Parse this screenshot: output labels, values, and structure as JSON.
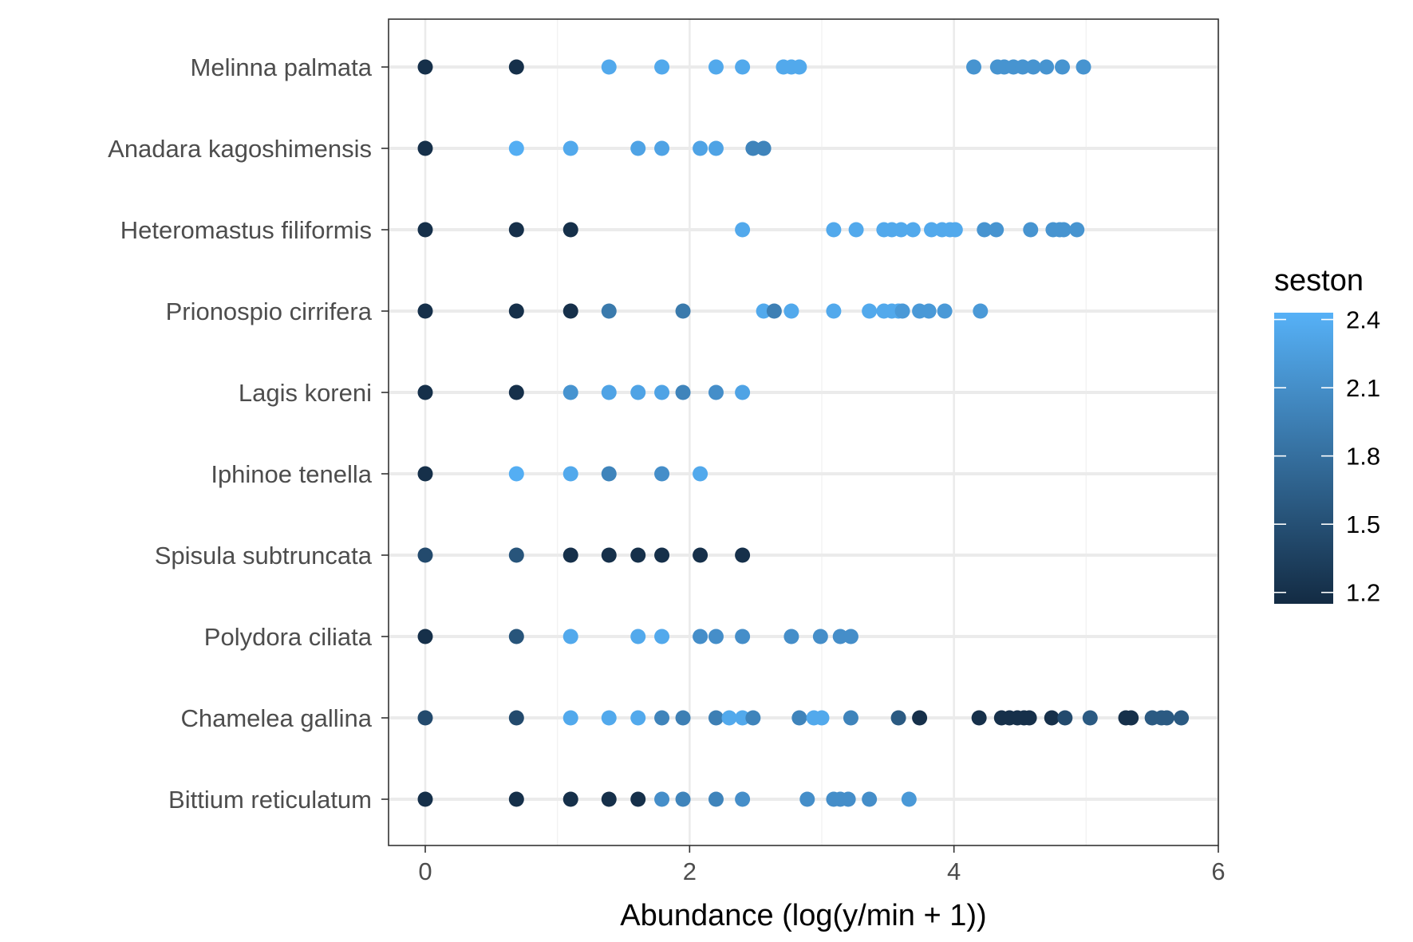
{
  "chart_data": {
    "type": "scatter",
    "title": "",
    "xlabel": "Abundance (log(y/min + 1))",
    "ylabel": "",
    "xlim": [
      -0.28,
      6.0
    ],
    "x_ticks": [
      0,
      2,
      4,
      6
    ],
    "x_tick_labels": [
      "0",
      "2",
      "4",
      "6"
    ],
    "grid": true,
    "theme": "bw",
    "color_legend": {
      "title": "seston",
      "position": "right",
      "min": 1.15,
      "max": 2.43,
      "ticks": [
        1.2,
        1.5,
        1.8,
        2.1,
        2.4
      ],
      "tick_labels": [
        "1.2",
        "1.5",
        "1.8",
        "2.1",
        "2.4"
      ],
      "low_color": "#132B43",
      "high_color": "#56B1F7"
    },
    "categories": [
      "Melinna palmata",
      "Anadara kagoshimensis",
      "Heteromastus filiformis",
      "Prionospio cirrifera",
      "Lagis koreni",
      "Iphinoe tenella",
      "Spisula subtruncata",
      "Polydora ciliata",
      "Chamelea gallina",
      "Bittium reticulatum"
    ],
    "series": [
      {
        "category": "Melinna palmata",
        "points": [
          [
            0,
            1.2
          ],
          [
            0.69,
            1.2
          ],
          [
            1.39,
            2.35
          ],
          [
            1.79,
            2.35
          ],
          [
            2.2,
            2.35
          ],
          [
            2.4,
            2.35
          ],
          [
            2.71,
            2.35
          ],
          [
            2.77,
            2.35
          ],
          [
            2.83,
            2.35
          ],
          [
            4.15,
            2.15
          ],
          [
            4.33,
            2.15
          ],
          [
            4.38,
            2.15
          ],
          [
            4.45,
            2.15
          ],
          [
            4.52,
            2.15
          ],
          [
            4.6,
            2.15
          ],
          [
            4.7,
            2.15
          ],
          [
            4.82,
            2.15
          ],
          [
            4.98,
            2.15
          ]
        ]
      },
      {
        "category": "Anadara kagoshimensis",
        "points": [
          [
            0,
            1.2
          ],
          [
            0.69,
            2.4
          ],
          [
            1.1,
            2.35
          ],
          [
            1.61,
            2.3
          ],
          [
            1.79,
            2.3
          ],
          [
            2.08,
            2.3
          ],
          [
            2.2,
            2.3
          ],
          [
            2.48,
            2.0
          ],
          [
            2.56,
            2.0
          ]
        ]
      },
      {
        "category": "Heteromastus filiformis",
        "points": [
          [
            0,
            1.2
          ],
          [
            0.69,
            1.2
          ],
          [
            1.1,
            1.2
          ],
          [
            2.4,
            2.35
          ],
          [
            3.09,
            2.35
          ],
          [
            3.26,
            2.35
          ],
          [
            3.47,
            2.35
          ],
          [
            3.53,
            2.35
          ],
          [
            3.6,
            2.35
          ],
          [
            3.69,
            2.35
          ],
          [
            3.83,
            2.35
          ],
          [
            3.91,
            2.35
          ],
          [
            3.97,
            2.35
          ],
          [
            4.01,
            2.35
          ],
          [
            4.23,
            2.15
          ],
          [
            4.32,
            2.15
          ],
          [
            4.58,
            2.15
          ],
          [
            4.75,
            2.15
          ],
          [
            4.8,
            2.15
          ],
          [
            4.83,
            2.15
          ],
          [
            4.93,
            2.15
          ]
        ]
      },
      {
        "category": "Prionospio cirrifera",
        "points": [
          [
            0,
            1.2
          ],
          [
            0.69,
            1.2
          ],
          [
            1.1,
            1.2
          ],
          [
            1.39,
            1.9
          ],
          [
            1.95,
            1.9
          ],
          [
            2.56,
            2.35
          ],
          [
            2.64,
            1.95
          ],
          [
            2.77,
            2.35
          ],
          [
            3.09,
            2.35
          ],
          [
            3.36,
            2.35
          ],
          [
            3.47,
            2.35
          ],
          [
            3.53,
            2.35
          ],
          [
            3.58,
            2.35
          ],
          [
            3.61,
            2.2
          ],
          [
            3.74,
            2.2
          ],
          [
            3.81,
            2.2
          ],
          [
            3.93,
            2.2
          ],
          [
            4.2,
            2.2
          ]
        ]
      },
      {
        "category": "Lagis koreni",
        "points": [
          [
            0,
            1.2
          ],
          [
            0.69,
            1.2
          ],
          [
            1.1,
            2.15
          ],
          [
            1.39,
            2.3
          ],
          [
            1.61,
            2.3
          ],
          [
            1.79,
            2.3
          ],
          [
            1.95,
            2.0
          ],
          [
            2.2,
            2.1
          ],
          [
            2.4,
            2.3
          ]
        ]
      },
      {
        "category": "Iphinoe tenella",
        "points": [
          [
            0,
            1.2
          ],
          [
            0.69,
            2.4
          ],
          [
            1.1,
            2.35
          ],
          [
            1.39,
            2.0
          ],
          [
            1.79,
            2.1
          ],
          [
            2.08,
            2.35
          ]
        ]
      },
      {
        "category": "Spisula subtruncata",
        "points": [
          [
            0,
            1.45
          ],
          [
            0.69,
            1.55
          ],
          [
            1.1,
            1.2
          ],
          [
            1.39,
            1.2
          ],
          [
            1.61,
            1.2
          ],
          [
            1.79,
            1.2
          ],
          [
            2.08,
            1.2
          ],
          [
            2.4,
            1.2
          ]
        ]
      },
      {
        "category": "Polydora ciliata",
        "points": [
          [
            0,
            1.2
          ],
          [
            0.69,
            1.55
          ],
          [
            1.1,
            2.35
          ],
          [
            1.61,
            2.35
          ],
          [
            1.79,
            2.35
          ],
          [
            2.08,
            2.1
          ],
          [
            2.2,
            2.1
          ],
          [
            2.4,
            2.1
          ],
          [
            2.77,
            2.1
          ],
          [
            2.99,
            2.1
          ],
          [
            3.14,
            2.1
          ],
          [
            3.22,
            2.1
          ]
        ]
      },
      {
        "category": "Chamelea gallina",
        "points": [
          [
            0,
            1.45
          ],
          [
            0.69,
            1.45
          ],
          [
            1.1,
            2.35
          ],
          [
            1.39,
            2.35
          ],
          [
            1.61,
            2.35
          ],
          [
            1.79,
            2.0
          ],
          [
            1.95,
            1.95
          ],
          [
            2.2,
            1.95
          ],
          [
            2.3,
            2.35
          ],
          [
            2.4,
            2.35
          ],
          [
            2.48,
            2.0
          ],
          [
            2.83,
            2.0
          ],
          [
            2.94,
            2.35
          ],
          [
            3.0,
            2.35
          ],
          [
            3.22,
            2.0
          ],
          [
            3.58,
            1.6
          ],
          [
            3.74,
            1.2
          ],
          [
            4.19,
            1.2
          ],
          [
            4.36,
            1.2
          ],
          [
            4.42,
            1.2
          ],
          [
            4.48,
            1.2
          ],
          [
            4.53,
            1.2
          ],
          [
            4.57,
            1.2
          ],
          [
            4.74,
            1.2
          ],
          [
            4.84,
            1.45
          ],
          [
            5.03,
            1.6
          ],
          [
            5.3,
            1.2
          ],
          [
            5.34,
            1.2
          ],
          [
            5.5,
            1.6
          ],
          [
            5.57,
            1.6
          ],
          [
            5.61,
            1.6
          ],
          [
            5.72,
            1.6
          ]
        ]
      },
      {
        "category": "Bittium reticulatum",
        "points": [
          [
            0,
            1.2
          ],
          [
            0.69,
            1.2
          ],
          [
            1.1,
            1.2
          ],
          [
            1.39,
            1.2
          ],
          [
            1.61,
            1.2
          ],
          [
            1.79,
            2.1
          ],
          [
            1.95,
            2.0
          ],
          [
            2.2,
            2.0
          ],
          [
            2.4,
            2.1
          ],
          [
            2.89,
            2.1
          ],
          [
            3.09,
            2.1
          ],
          [
            3.14,
            2.1
          ],
          [
            3.2,
            2.1
          ],
          [
            3.36,
            2.1
          ],
          [
            3.66,
            2.2
          ]
        ]
      }
    ]
  }
}
